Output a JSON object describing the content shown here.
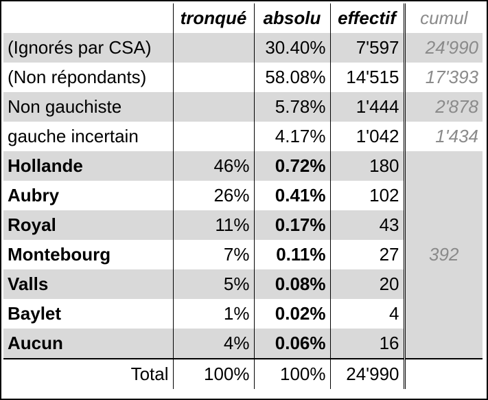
{
  "headers": {
    "label": "",
    "tronque": "tronqué",
    "absolu": "absolu",
    "effectif": "effectif",
    "cumul": "cumul"
  },
  "rows": [
    {
      "label": "(Ignorés par CSA)",
      "tronque": "",
      "absolu": "30.40%",
      "effectif": "7'597",
      "cumul": "24'990",
      "bold": false,
      "grey": true
    },
    {
      "label": "(Non répondants)",
      "tronque": "",
      "absolu": "58.08%",
      "effectif": "14'515",
      "cumul": "17'393",
      "bold": false,
      "grey": false
    },
    {
      "label": "Non gauchiste",
      "tronque": "",
      "absolu": "5.78%",
      "effectif": "1'444",
      "cumul": "2'878",
      "bold": false,
      "grey": true
    },
    {
      "label": "gauche incertain",
      "tronque": "",
      "absolu": "4.17%",
      "effectif": "1'042",
      "cumul": "1'434",
      "bold": false,
      "grey": false
    },
    {
      "label": "Hollande",
      "tronque": "46%",
      "absolu": "0.72%",
      "effectif": "180",
      "bold": true,
      "grey": true
    },
    {
      "label": "Aubry",
      "tronque": "26%",
      "absolu": "0.41%",
      "effectif": "102",
      "bold": true,
      "grey": false
    },
    {
      "label": "Royal",
      "tronque": "11%",
      "absolu": "0.17%",
      "effectif": "43",
      "bold": true,
      "grey": true
    },
    {
      "label": "Montebourg",
      "tronque": "7%",
      "absolu": "0.11%",
      "effectif": "27",
      "bold": true,
      "grey": false
    },
    {
      "label": "Valls",
      "tronque": "5%",
      "absolu": "0.08%",
      "effectif": "20",
      "bold": true,
      "grey": true
    },
    {
      "label": "Baylet",
      "tronque": "1%",
      "absolu": "0.02%",
      "effectif": "4",
      "bold": true,
      "grey": false
    },
    {
      "label": "Aucun",
      "tronque": "4%",
      "absolu": "0.06%",
      "effectif": "16",
      "bold": true,
      "grey": true
    }
  ],
  "candidates_cumul": "392",
  "total": {
    "label": "Total",
    "tronque": "100%",
    "absolu": "100%",
    "effectif": "24'990"
  }
}
